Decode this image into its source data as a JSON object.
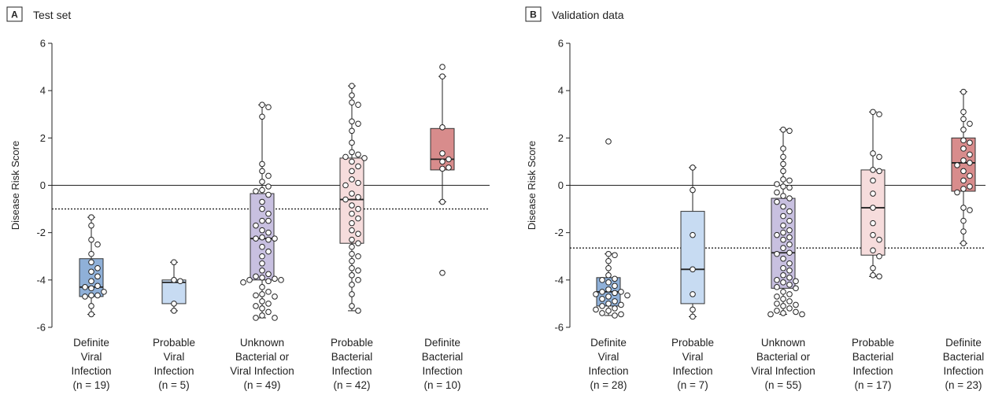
{
  "chart_data": [
    {
      "type": "box",
      "panel_letter": "A",
      "title": "Test set",
      "ylabel": "Disease Risk Score",
      "ylim": [
        -6,
        6
      ],
      "yticks": [
        6,
        4,
        2,
        0,
        -2,
        -4,
        -6
      ],
      "threshold": -1.0,
      "categories": [
        {
          "label": [
            "Definite",
            "Viral",
            "Infection",
            "(n = 19)"
          ],
          "color": "#8fb0d8",
          "box": {
            "min": -5.45,
            "q1": -4.7,
            "median": -4.3,
            "q3": -3.1,
            "max": -1.35
          },
          "points": [
            -1.35,
            -1.7,
            -2.3,
            -2.5,
            -2.9,
            -3.25,
            -3.5,
            -3.65,
            -3.85,
            -4.05,
            -4.25,
            -4.3,
            -4.35,
            -4.5,
            -4.65,
            -4.65,
            -4.7,
            -5.1,
            -5.45
          ]
        },
        {
          "label": [
            "Probable",
            "Viral",
            "Infection",
            "(n = 5)"
          ],
          "color": "#c7dbf2",
          "box": {
            "min": -5.3,
            "q1": -5.0,
            "median": -4.1,
            "q3": -4.0,
            "max": -3.25
          },
          "points": [
            -3.25,
            -4.0,
            -4.05,
            -5.0,
            -5.3
          ]
        },
        {
          "label": [
            "Unknown",
            "Bacterial or",
            "Viral Infection",
            "(n = 49)"
          ],
          "color": "#c8c0e0",
          "box": {
            "min": -5.6,
            "q1": -4.0,
            "median": -2.25,
            "q3": -0.35,
            "max": 3.4
          },
          "points": [
            3.4,
            3.3,
            2.9,
            0.9,
            0.6,
            0.4,
            0.15,
            -0.05,
            -0.2,
            -0.25,
            -0.4,
            -0.7,
            -1.0,
            -1.2,
            -1.5,
            -1.5,
            -1.7,
            -1.9,
            -2.0,
            -2.2,
            -2.25,
            -2.25,
            -2.3,
            -2.6,
            -2.8,
            -3.0,
            -3.3,
            -3.6,
            -3.75,
            -3.85,
            -3.9,
            -3.95,
            -4.0,
            -4.0,
            -4.05,
            -4.1,
            -4.3,
            -4.5,
            -4.6,
            -4.65,
            -4.7,
            -4.9,
            -5.0,
            -5.1,
            -5.2,
            -5.35,
            -5.5,
            -5.6,
            -5.6
          ]
        },
        {
          "label": [
            "Probable",
            "Bacterial",
            "Infection",
            "(n = 42)"
          ],
          "color": "#f6dcdc",
          "box": {
            "min": -5.3,
            "q1": -2.45,
            "median": -0.6,
            "q3": 1.15,
            "max": 4.2
          },
          "points": [
            4.2,
            3.8,
            3.5,
            3.4,
            2.7,
            2.6,
            2.3,
            1.8,
            1.4,
            1.3,
            1.2,
            1.15,
            1.0,
            0.8,
            0.6,
            0.25,
            0.1,
            0.0,
            -0.35,
            -0.5,
            -0.6,
            -0.85,
            -1.0,
            -1.2,
            -1.4,
            -1.6,
            -1.9,
            -2.05,
            -2.3,
            -2.45,
            -2.6,
            -2.9,
            -3.0,
            -3.2,
            -3.5,
            -3.6,
            -3.8,
            -4.0,
            -4.2,
            -4.6,
            -5.1,
            -5.3
          ]
        },
        {
          "label": [
            "Definite",
            "Bacterial",
            "Infection",
            "(n = 10)"
          ],
          "color": "#d88c8c",
          "box": {
            "min": -0.7,
            "q1": 0.65,
            "median": 1.1,
            "q3": 2.4,
            "max": 4.6
          },
          "points": [
            5.0,
            4.6,
            2.45,
            1.35,
            1.1,
            1.0,
            0.75,
            0.7,
            -0.7,
            -3.7
          ]
        }
      ]
    },
    {
      "type": "box",
      "panel_letter": "B",
      "title": "Validation data",
      "ylabel": "Disease Risk Score",
      "ylim": [
        -6,
        6
      ],
      "yticks": [
        6,
        4,
        2,
        0,
        -2,
        -4,
        -6
      ],
      "threshold": -2.65,
      "categories": [
        {
          "label": [
            "Definite",
            "Viral",
            "Infection",
            "(n = 28)"
          ],
          "color": "#8fb0d8",
          "box": {
            "min": -5.5,
            "q1": -5.1,
            "median": -4.5,
            "q3": -3.9,
            "max": -2.9
          },
          "points": [
            1.85,
            -2.9,
            -2.95,
            -3.2,
            -3.5,
            -3.8,
            -3.95,
            -4.0,
            -4.1,
            -4.25,
            -4.4,
            -4.5,
            -4.5,
            -4.55,
            -4.6,
            -4.65,
            -4.7,
            -4.8,
            -4.9,
            -5.0,
            -5.05,
            -5.1,
            -5.2,
            -5.25,
            -5.3,
            -5.4,
            -5.45,
            -5.5
          ]
        },
        {
          "label": [
            "Probable",
            "Viral",
            "Infection",
            "(n = 7)"
          ],
          "color": "#c7dbf2",
          "box": {
            "min": -5.55,
            "q1": -5.0,
            "median": -3.55,
            "q3": -1.1,
            "max": 0.75
          },
          "points": [
            0.75,
            -0.2,
            -2.1,
            -3.55,
            -4.6,
            -5.25,
            -5.55
          ]
        },
        {
          "label": [
            "Unknown",
            "Bacterial or",
            "Viral Infection",
            "(n = 55)"
          ],
          "color": "#c8c0e0",
          "box": {
            "min": -5.45,
            "q1": -4.35,
            "median": -2.85,
            "q3": -0.55,
            "max": 2.35
          },
          "points": [
            2.35,
            2.3,
            1.55,
            1.2,
            0.9,
            0.6,
            0.25,
            0.2,
            0.05,
            -0.05,
            -0.1,
            -0.3,
            -0.45,
            -0.55,
            -0.7,
            -0.9,
            -1.1,
            -1.3,
            -1.5,
            -1.7,
            -1.9,
            -2.0,
            -2.1,
            -2.2,
            -2.3,
            -2.5,
            -2.65,
            -2.85,
            -2.9,
            -3.1,
            -3.3,
            -3.5,
            -3.6,
            -3.8,
            -3.9,
            -4.0,
            -4.05,
            -4.1,
            -4.2,
            -4.3,
            -4.35,
            -4.5,
            -4.6,
            -4.7,
            -4.8,
            -4.9,
            -5.0,
            -5.05,
            -5.1,
            -5.2,
            -5.3,
            -5.35,
            -5.4,
            -5.45,
            -5.45
          ]
        },
        {
          "label": [
            "Probable",
            "Bacterial",
            "Infection",
            "(n = 17)"
          ],
          "color": "#f6dcdc",
          "box": {
            "min": -3.85,
            "q1": -2.95,
            "median": -0.95,
            "q3": 0.65,
            "max": 3.1
          },
          "points": [
            3.1,
            3.0,
            1.35,
            1.2,
            0.65,
            0.6,
            0.2,
            -0.35,
            -0.95,
            -1.6,
            -2.1,
            -2.3,
            -2.75,
            -3.0,
            -3.5,
            -3.8,
            -3.85
          ]
        },
        {
          "label": [
            "Definite",
            "Bacterial",
            "Infection",
            "(n = 23)"
          ],
          "color": "#d88c8c",
          "box": {
            "min": -2.45,
            "q1": -0.25,
            "median": 0.95,
            "q3": 2.0,
            "max": 3.95
          },
          "points": [
            3.95,
            3.1,
            2.8,
            2.6,
            2.35,
            1.9,
            1.8,
            1.55,
            1.3,
            1.05,
            0.95,
            0.85,
            0.6,
            0.4,
            0.2,
            -0.05,
            -0.15,
            -0.3,
            -0.95,
            -1.05,
            -1.5,
            -1.95,
            -2.45
          ]
        }
      ]
    }
  ]
}
